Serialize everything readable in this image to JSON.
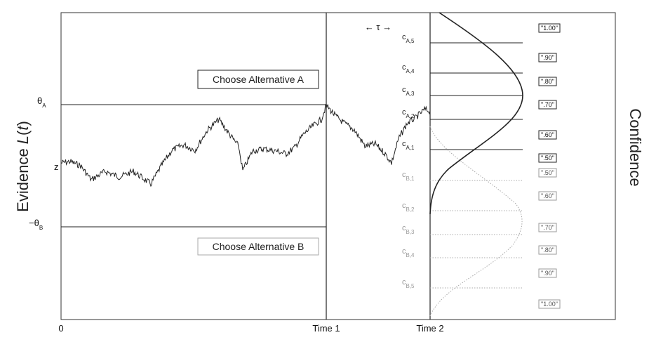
{
  "y_axis": {
    "label_prefix": "Evidence ",
    "label_var": "L",
    "label_open": "(",
    "label_arg": "t",
    "label_close": ")",
    "theta_a": "θ",
    "theta_a_sub": "A",
    "theta_b": "−θ",
    "theta_b_sub": "B",
    "z": "z"
  },
  "x_axis": {
    "ticks": [
      "0",
      "Time 1",
      "Time 2"
    ]
  },
  "tau_label": "← τ →",
  "choices": {
    "a": "Choose Alternative A",
    "b": "Choose Alternative B"
  },
  "confidence_title": "Confidence",
  "criteria": {
    "a": [
      {
        "base": "c",
        "sub": "A,5"
      },
      {
        "base": "c",
        "sub": "A,4"
      },
      {
        "base": "c",
        "sub": "A,3"
      },
      {
        "base": "c",
        "sub": "A,2"
      },
      {
        "base": "c",
        "sub": "A,1"
      }
    ],
    "b": [
      {
        "base": "c",
        "sub": "B,1"
      },
      {
        "base": "c",
        "sub": "B,2"
      },
      {
        "base": "c",
        "sub": "B,3"
      },
      {
        "base": "c",
        "sub": "B,4"
      },
      {
        "base": "c",
        "sub": "B,5"
      }
    ]
  },
  "confidence_labels": {
    "a": [
      "\".50\"",
      "\".60\"",
      "\".70\"",
      "\".80\"",
      "\".90\"",
      "\"1.00\""
    ],
    "b": [
      "\".50\"",
      "\".60\"",
      "\".70\"",
      "\".80\"",
      "\".90\"",
      "\"1.00\""
    ]
  }
}
